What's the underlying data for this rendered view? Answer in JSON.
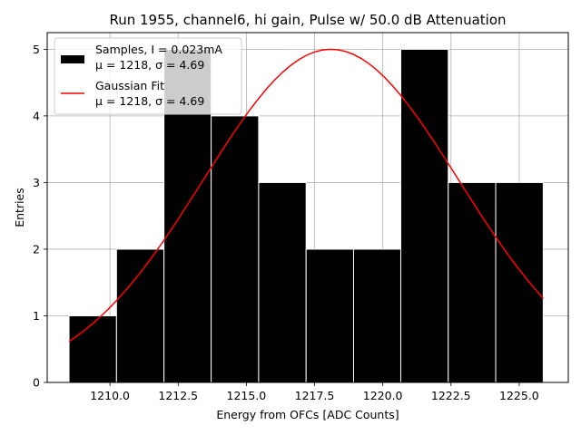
{
  "chart_data": {
    "type": "bar",
    "title": "Run 1955, channel6, hi gain, Pulse w/ 50.0 dB Attenuation",
    "xlabel": "Energy from OFCs [ADC Counts]",
    "ylabel": "Entries",
    "xlim": [
      1207.7,
      1226.8
    ],
    "ylim": [
      0,
      5.25
    ],
    "xticks": [
      1210.0,
      1212.5,
      1215.0,
      1217.5,
      1220.0,
      1222.5,
      1225.0
    ],
    "xtick_labels": [
      "1210.0",
      "1212.5",
      "1215.0",
      "1217.5",
      "1220.0",
      "1222.5",
      "1225.0"
    ],
    "yticks": [
      0,
      1,
      2,
      3,
      4,
      5
    ],
    "ytick_labels": [
      "0",
      "1",
      "2",
      "3",
      "4",
      "5"
    ],
    "grid": true,
    "legend_placement": "top-left",
    "colors": {
      "histogram": "#000000",
      "fit": "#ff0000",
      "grid": "#b0b0b0",
      "bar_edge": "#ffffff"
    },
    "histogram": {
      "name_line1": "Samples, I = 0.023mA",
      "name_line2": "μ = 1218, σ = 4.69",
      "bin_edges": [
        1208.5,
        1210.24,
        1211.98,
        1213.71,
        1215.45,
        1217.19,
        1218.93,
        1220.66,
        1222.4,
        1224.14,
        1225.88
      ],
      "counts": [
        1,
        2,
        5,
        4,
        3,
        2,
        2,
        5,
        3,
        3
      ]
    },
    "fit": {
      "name_line1": "Gaussian Fit",
      "name_line2": "μ = 1218, σ = 4.69",
      "mu": 1218.1,
      "sigma": 4.69,
      "amplitude": 5.0,
      "x_range": [
        1208.5,
        1225.88
      ]
    }
  }
}
